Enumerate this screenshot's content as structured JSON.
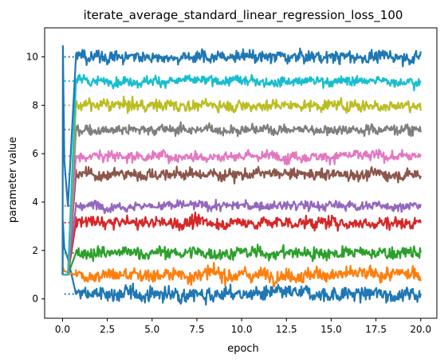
{
  "chart_data": {
    "type": "line",
    "title": "iterate_average_standard_linear_regression_loss_100",
    "xlabel": "epoch",
    "ylabel": "parameter value",
    "xlim": [
      -1.0,
      20.9
    ],
    "ylim": [
      -0.8,
      11.2
    ],
    "xticks": [
      0.0,
      2.5,
      5.0,
      7.5,
      10.0,
      12.5,
      15.0,
      17.5,
      20.0
    ],
    "xtick_labels": [
      "0.0",
      "2.5",
      "5.0",
      "7.5",
      "10.0",
      "12.5",
      "15.0",
      "17.5",
      "20.0"
    ],
    "yticks": [
      0,
      2,
      4,
      6,
      8,
      10
    ],
    "ytick_labels": [
      "0",
      "2",
      "4",
      "6",
      "8",
      "10"
    ],
    "grid": false,
    "legend": false,
    "series": [
      {
        "color": "#1f77b4",
        "init": 1.0,
        "peak": 10.45,
        "plateau_start": 0.75,
        "target": 10.0,
        "noise": 0.17,
        "start_x": 0.75
      },
      {
        "color": "#17becf",
        "init": 1.0,
        "peak": 1.0,
        "plateau_start": 0.75,
        "target": 9.0,
        "noise": 0.13,
        "start_x": 0.75
      },
      {
        "color": "#bcbd22",
        "init": 1.0,
        "peak": 1.0,
        "plateau_start": 0.75,
        "target": 8.0,
        "noise": 0.16,
        "start_x": 0.75
      },
      {
        "color": "#7f7f7f",
        "init": 1.0,
        "peak": 1.0,
        "plateau_start": 0.75,
        "target": 7.0,
        "noise": 0.14,
        "start_x": 0.75
      },
      {
        "color": "#e377c2",
        "init": 1.0,
        "peak": 1.0,
        "plateau_start": 0.75,
        "target": 5.9,
        "noise": 0.15,
        "start_x": 0.75
      },
      {
        "color": "#8c564b",
        "init": 1.0,
        "peak": 1.0,
        "plateau_start": 0.75,
        "target": 5.15,
        "noise": 0.16,
        "start_x": 0.75
      },
      {
        "color": "#9467bd",
        "init": 1.0,
        "peak": 1.0,
        "plateau_start": 0.75,
        "target": 3.85,
        "noise": 0.13,
        "start_x": 0.75
      },
      {
        "color": "#d62728",
        "init": 1.0,
        "peak": 1.0,
        "plateau_start": 0.75,
        "target": 3.15,
        "noise": 0.17,
        "start_x": 0.75
      },
      {
        "color": "#2ca02c",
        "init": 1.0,
        "peak": 1.0,
        "plateau_start": 0.75,
        "target": 1.9,
        "noise": 0.17,
        "start_x": 0.75
      },
      {
        "color": "#ff7f0e",
        "init": 1.0,
        "peak": 1.3,
        "plateau_start": 0.75,
        "target": 1.0,
        "noise": 0.19,
        "start_x": 0.75
      },
      {
        "color": "#1f77b4",
        "init": 1.0,
        "peak": 3.2,
        "plateau_start": 0.75,
        "target": 0.2,
        "noise": 0.2,
        "start_x": 0.75
      }
    ]
  }
}
